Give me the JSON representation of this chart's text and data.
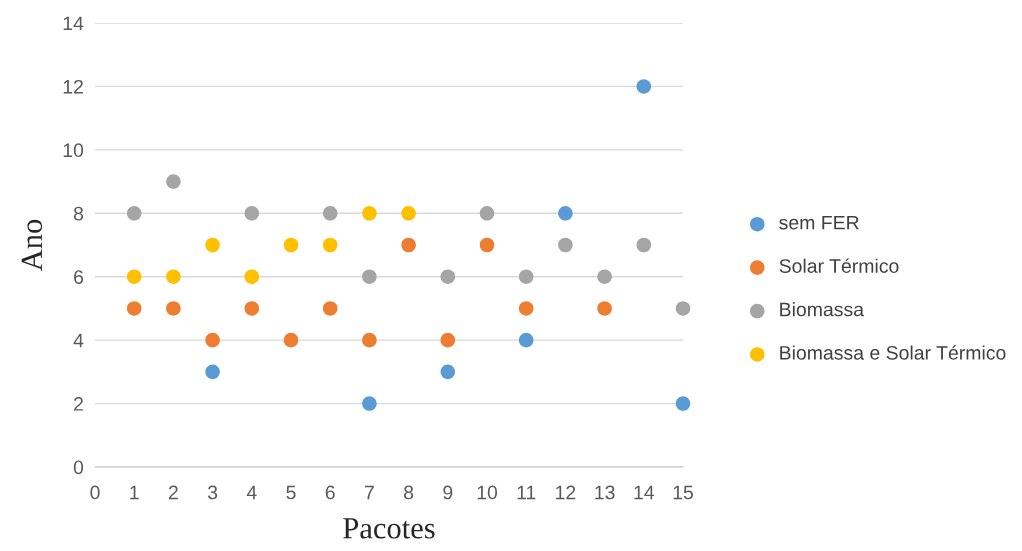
{
  "chart_data": {
    "type": "scatter",
    "xlabel": "Pacotes",
    "ylabel": "Ano",
    "x": [
      1,
      2,
      3,
      4,
      5,
      6,
      7,
      8,
      9,
      10,
      11,
      12,
      13,
      14,
      15
    ],
    "series": [
      {
        "name": "sem FER",
        "color": "#5b9bd5",
        "values": [
          null,
          null,
          3,
          null,
          null,
          null,
          2,
          null,
          3,
          null,
          4,
          8,
          null,
          12,
          2
        ]
      },
      {
        "name": "Solar Térmico",
        "color": "#ed7d31",
        "values": [
          5,
          5,
          4,
          5,
          4,
          5,
          4,
          7,
          4,
          7,
          5,
          null,
          5,
          null,
          null
        ]
      },
      {
        "name": "Biomassa",
        "color": "#a5a5a5",
        "values": [
          8,
          9,
          null,
          8,
          null,
          8,
          6,
          null,
          6,
          8,
          6,
          7,
          6,
          7,
          5
        ]
      },
      {
        "name": "Biomassa e Solar Térmico",
        "color": "#ffc000",
        "values": [
          6,
          6,
          7,
          6,
          7,
          7,
          8,
          8,
          null,
          null,
          null,
          null,
          null,
          null,
          null
        ]
      }
    ],
    "xlim": [
      0,
      15
    ],
    "xticks": [
      0,
      1,
      2,
      3,
      4,
      5,
      6,
      7,
      8,
      9,
      10,
      11,
      12,
      13,
      14,
      15
    ],
    "ylim": [
      0,
      14
    ],
    "yticks": [
      0,
      2,
      4,
      6,
      8,
      10,
      12,
      14
    ],
    "grid": "y",
    "legend": "right",
    "marker": "circle"
  }
}
